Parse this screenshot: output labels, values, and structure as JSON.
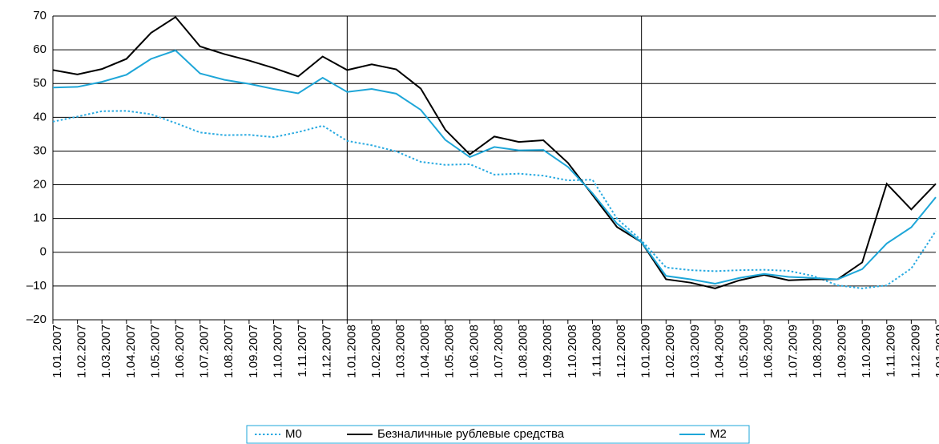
{
  "chart_data": {
    "type": "line",
    "categories": [
      "1.01.2007",
      "1.02.2007",
      "1.03.2007",
      "1.04.2007",
      "1.05.2007",
      "1.06.2007",
      "1.07.2007",
      "1.08.2007",
      "1.09.2007",
      "1.10.2007",
      "1.11.2007",
      "1.12.2007",
      "1.01.2008",
      "1.02.2008",
      "1.03.2008",
      "1.04.2008",
      "1.05.2008",
      "1.06.2008",
      "1.07.2008",
      "1.08.2008",
      "1.09.2008",
      "1.10.2008",
      "1.11.2008",
      "1.12.2008",
      "1.01.2009",
      "1.02.2009",
      "1.03.2009",
      "1.04.2009",
      "1.05.2009",
      "1.06.2009",
      "1.07.2009",
      "1.08.2009",
      "1.09.2009",
      "1.10.2009",
      "1.11.2009",
      "1.12.2009",
      "1.01.2010"
    ],
    "series": [
      {
        "name": "M0",
        "color": "#29aae1",
        "style": "dotted",
        "values": [
          38.7,
          40.2,
          41.8,
          41.9,
          40.9,
          38.3,
          35.5,
          34.7,
          34.8,
          34.1,
          35.6,
          37.5,
          33,
          31.7,
          29.9,
          26.8,
          25.9,
          26.1,
          23,
          23.3,
          22.7,
          21.3,
          21.5,
          10,
          3.5,
          -4.5,
          -5.3,
          -5.6,
          -5.3,
          -5.2,
          -5.5,
          -7,
          -9.8,
          -10.7,
          -9.8,
          -4.8,
          6.3
        ]
      },
      {
        "name": "Безналичные рублевые средства",
        "color": "#000000",
        "style": "solid",
        "values": [
          54,
          52.7,
          54.3,
          57.3,
          65,
          69.7,
          61,
          58.7,
          56.8,
          54.6,
          52.1,
          58,
          54,
          55.7,
          54.2,
          48.5,
          36.3,
          29,
          34.3,
          32.7,
          33.2,
          26.5,
          17,
          7.5,
          3,
          -8,
          -9,
          -10.7,
          -8.3,
          -6.7,
          -8.3,
          -8,
          -8,
          -3,
          20.3,
          12.7,
          20.3
        ]
      },
      {
        "name": "M2",
        "color": "#1ea6d8",
        "style": "solid",
        "values": [
          48.8,
          49,
          50.5,
          52.6,
          57.3,
          59.8,
          53,
          51.1,
          49.9,
          48.4,
          47.1,
          51.7,
          47.5,
          48.4,
          47,
          42.2,
          33.3,
          28.2,
          31.2,
          30.2,
          30.3,
          25.3,
          17.5,
          8.5,
          3,
          -7,
          -8,
          -9.3,
          -7.6,
          -6.4,
          -7.3,
          -7.6,
          -8,
          -5,
          2.6,
          7.4,
          16.3
        ]
      }
    ],
    "ylim": [
      -20,
      70
    ],
    "yticks": [
      {
        "value": -20,
        "label": "–20"
      },
      {
        "value": -10,
        "label": "–10"
      },
      0,
      10,
      20,
      30,
      40,
      50,
      60,
      70
    ],
    "grid": true
  }
}
